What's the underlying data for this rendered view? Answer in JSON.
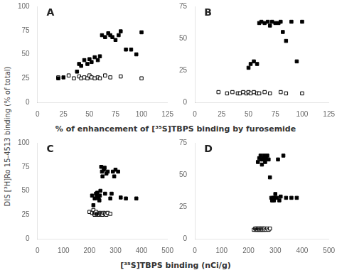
{
  "chart_data": [
    {
      "type": "scatter",
      "title": "A",
      "ylabel": "DIS [³H]Ro 15-4513 binding (% of total)",
      "xlabel": "% of enhancement of [³⁵S]TBPS binding by furosemide",
      "series": [
        {
          "color": "white",
          "marker": "square",
          "x": [
            20,
            30,
            35,
            40,
            42,
            45,
            48,
            50,
            52,
            55,
            58,
            60,
            65,
            70,
            80,
            100
          ],
          "values": [
            26,
            28,
            25,
            27,
            25,
            26,
            25,
            28,
            26,
            25,
            26,
            25,
            28,
            26,
            27,
            25
          ]
        },
        {
          "color": "black",
          "marker": "square",
          "x": [
            20,
            25,
            38,
            40,
            42,
            45,
            48,
            50,
            52,
            55,
            58,
            60,
            62,
            65,
            68,
            70,
            72,
            75,
            78,
            80,
            85,
            90,
            95,
            100
          ],
          "values": [
            25,
            26,
            32,
            40,
            38,
            44,
            40,
            45,
            42,
            47,
            44,
            48,
            70,
            68,
            72,
            70,
            68,
            65,
            70,
            74,
            55,
            55,
            50,
            73
          ]
        }
      ],
      "xlim": [
        0,
        125
      ],
      "ylim": [
        0,
        100
      ],
      "xticks": [
        0,
        25,
        50,
        75,
        100,
        125
      ],
      "yticks": [
        0,
        25,
        50,
        75,
        100
      ],
      "grid": false
    },
    {
      "type": "scatter",
      "title": "B",
      "series": [
        {
          "color": "white",
          "marker": "square",
          "x": [
            22,
            30,
            35,
            40,
            42,
            45,
            48,
            50,
            52,
            55,
            58,
            60,
            65,
            70,
            80,
            85,
            100
          ],
          "values": [
            8,
            7,
            8,
            7,
            7,
            8,
            7,
            8,
            7,
            8,
            7,
            7,
            8,
            7,
            8,
            7,
            7
          ]
        },
        {
          "color": "black",
          "marker": "square",
          "x": [
            50,
            52,
            55,
            58,
            60,
            62,
            65,
            68,
            70,
            72,
            75,
            78,
            80,
            82,
            85,
            90,
            95,
            100
          ],
          "values": [
            27,
            30,
            32,
            30,
            62,
            63,
            62,
            63,
            60,
            63,
            62,
            62,
            63,
            55,
            48,
            63,
            32,
            63
          ]
        }
      ],
      "xlim": [
        0,
        125
      ],
      "ylim": [
        0,
        75
      ],
      "xticks": [
        0,
        25,
        50,
        75,
        100,
        125
      ],
      "yticks": [
        0,
        25,
        50,
        75
      ],
      "grid": false
    },
    {
      "type": "scatter",
      "title": "C",
      "xlabel": "[³⁵S]TBPS binding (nCi/g)",
      "series": [
        {
          "color": "white",
          "marker": "square",
          "x": [
            200,
            210,
            215,
            218,
            220,
            222,
            225,
            228,
            230,
            232,
            235,
            238,
            240,
            242,
            245,
            248,
            250,
            255,
            260,
            265,
            270,
            280
          ],
          "values": [
            28,
            27,
            30,
            26,
            25,
            27,
            28,
            25,
            26,
            25,
            26,
            25,
            27,
            26,
            25,
            26,
            25,
            27,
            26,
            25,
            27,
            26
          ]
        },
        {
          "color": "black",
          "marker": "square",
          "x": [
            210,
            215,
            220,
            225,
            228,
            230,
            235,
            238,
            240,
            242,
            245,
            248,
            250,
            255,
            258,
            260,
            265,
            270,
            280,
            285,
            290,
            295,
            300,
            310,
            320,
            340,
            380
          ],
          "values": [
            45,
            35,
            42,
            47,
            44,
            48,
            42,
            40,
            45,
            50,
            75,
            70,
            65,
            72,
            74,
            47,
            68,
            70,
            42,
            47,
            70,
            65,
            72,
            70,
            43,
            42,
            42
          ]
        }
      ],
      "xlim": [
        0,
        500
      ],
      "ylim": [
        0,
        100
      ],
      "xticks": [
        0,
        100,
        200,
        300,
        400,
        500
      ],
      "yticks": [
        0,
        25,
        50,
        75,
        100
      ],
      "grid": false
    },
    {
      "type": "scatter",
      "title": "D",
      "series": [
        {
          "color": "white",
          "marker": "square",
          "x": [
            220,
            225,
            228,
            230,
            232,
            235,
            238,
            240,
            242,
            245,
            248,
            250,
            252,
            255,
            258,
            260,
            265,
            270,
            275,
            280
          ],
          "values": [
            7,
            8,
            7,
            8,
            7,
            8,
            7,
            8,
            7,
            8,
            7,
            8,
            7,
            8,
            7,
            8,
            7,
            8,
            7,
            8
          ]
        },
        {
          "color": "black",
          "marker": "square",
          "x": [
            235,
            240,
            245,
            248,
            250,
            252,
            255,
            258,
            260,
            262,
            265,
            270,
            275,
            280,
            285,
            288,
            290,
            292,
            295,
            298,
            300,
            305,
            310,
            315,
            320,
            330,
            340,
            360,
            380
          ],
          "values": [
            60,
            63,
            65,
            62,
            58,
            62,
            63,
            65,
            62,
            60,
            63,
            65,
            62,
            48,
            32,
            30,
            30,
            32,
            30,
            32,
            35,
            32,
            62,
            30,
            33,
            65,
            32,
            32,
            32
          ]
        }
      ],
      "xlim": [
        0,
        500
      ],
      "ylim": [
        0,
        75
      ],
      "xticks": [
        0,
        100,
        200,
        300,
        400,
        500
      ],
      "yticks": [
        0,
        25,
        50,
        75
      ],
      "grid": false
    }
  ]
}
